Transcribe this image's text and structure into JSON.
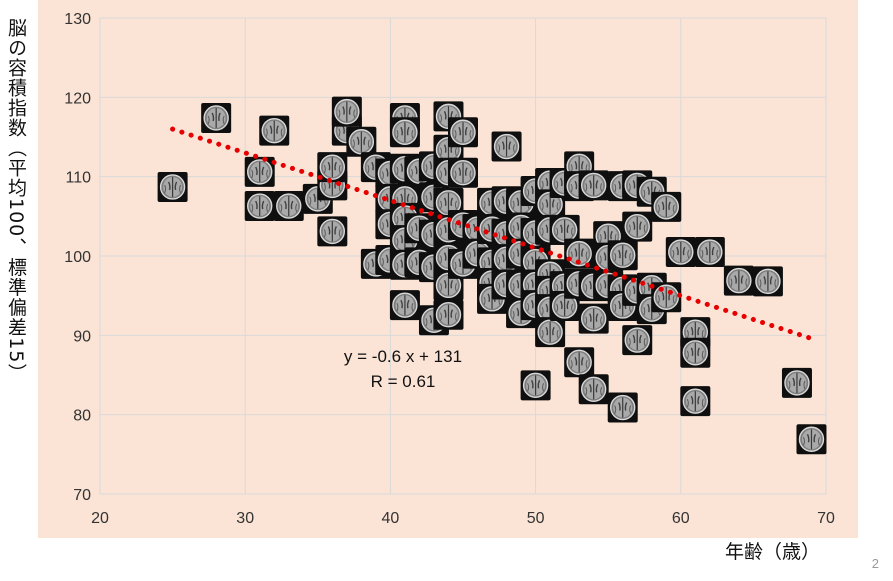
{
  "chart_data": {
    "type": "scatter",
    "title": "",
    "xlabel": "年齢（歳）",
    "ylabel": "脳の容積指数（平均100、標準偏差15）",
    "xlim": [
      20,
      70
    ],
    "ylim": [
      70,
      130
    ],
    "xticks": [
      "20",
      "30",
      "40",
      "50",
      "60",
      "70"
    ],
    "yticks": [
      "70",
      "80",
      "90",
      "100",
      "110",
      "120",
      "130"
    ],
    "grid": true,
    "marker": "brain-mri-icon",
    "series": [
      {
        "points": [
          [
            25,
            108.7
          ],
          [
            28,
            117.4
          ],
          [
            31,
            110.6
          ],
          [
            31,
            106.3
          ],
          [
            32,
            115.8
          ],
          [
            33,
            106.3
          ],
          [
            35,
            107.2
          ],
          [
            36,
            108.9
          ],
          [
            36,
            111.2
          ],
          [
            36,
            103.1
          ],
          [
            37,
            115.8
          ],
          [
            37,
            118.2
          ],
          [
            38,
            114.4
          ],
          [
            39,
            111.2
          ],
          [
            39,
            99
          ],
          [
            40,
            110.4
          ],
          [
            40,
            107.2
          ],
          [
            40,
            104
          ],
          [
            40,
            99.5
          ],
          [
            41,
            117.4
          ],
          [
            41,
            115.6
          ],
          [
            41,
            111
          ],
          [
            41,
            107.2
          ],
          [
            41,
            104.8
          ],
          [
            41,
            102
          ],
          [
            41,
            98.9
          ],
          [
            41,
            93.8
          ],
          [
            42,
            110.7
          ],
          [
            42,
            103.5
          ],
          [
            42,
            99.2
          ],
          [
            43,
            111.3
          ],
          [
            43,
            107.4
          ],
          [
            43,
            102.7
          ],
          [
            43,
            98.6
          ],
          [
            43,
            91.9
          ],
          [
            44,
            117.6
          ],
          [
            44,
            113.4
          ],
          [
            44,
            110.5
          ],
          [
            44,
            106.7
          ],
          [
            44,
            103.3
          ],
          [
            44,
            99.8
          ],
          [
            44,
            96.3
          ],
          [
            44,
            92.6
          ],
          [
            45,
            115.6
          ],
          [
            45,
            110.5
          ],
          [
            45,
            103.9
          ],
          [
            45,
            99
          ],
          [
            46,
            103.4
          ],
          [
            46,
            100.3
          ],
          [
            47,
            106.7
          ],
          [
            47,
            103.4
          ],
          [
            47,
            99.2
          ],
          [
            47,
            96.6
          ],
          [
            47,
            94.6
          ],
          [
            48,
            113.8
          ],
          [
            48,
            106.9
          ],
          [
            48,
            102.8
          ],
          [
            48,
            99.6
          ],
          [
            48,
            96.4
          ],
          [
            49,
            106.7
          ],
          [
            49,
            103.6
          ],
          [
            49,
            100.3
          ],
          [
            49,
            96.3
          ],
          [
            49,
            92.8
          ],
          [
            50,
            108.2
          ],
          [
            50,
            102.9
          ],
          [
            50,
            99.3
          ],
          [
            50,
            96.4
          ],
          [
            50,
            93.8
          ],
          [
            50,
            83.7
          ],
          [
            51,
            109.2
          ],
          [
            51,
            106.5
          ],
          [
            51,
            103.3
          ],
          [
            51,
            97.7
          ],
          [
            51,
            95.6
          ],
          [
            51,
            93.3
          ],
          [
            51,
            90.4
          ],
          [
            52,
            109.2
          ],
          [
            52,
            103.3
          ],
          [
            52,
            96.2
          ],
          [
            52,
            93.7
          ],
          [
            53,
            111.3
          ],
          [
            53,
            108.8
          ],
          [
            53,
            100.3
          ],
          [
            53,
            96.5
          ],
          [
            53,
            86.6
          ],
          [
            54,
            108.9
          ],
          [
            54,
            96.2
          ],
          [
            54,
            92.1
          ],
          [
            54,
            83.2
          ],
          [
            55,
            102.5
          ],
          [
            55,
            99.8
          ],
          [
            55,
            96.3
          ],
          [
            56,
            108.8
          ],
          [
            56,
            100.1
          ],
          [
            56,
            95.8
          ],
          [
            56,
            93.7
          ],
          [
            56,
            80.9
          ],
          [
            57,
            108.9
          ],
          [
            57,
            103.7
          ],
          [
            57,
            95.6
          ],
          [
            57,
            89.4
          ],
          [
            58,
            108.1
          ],
          [
            58,
            96
          ],
          [
            58,
            93.3
          ],
          [
            59,
            106.2
          ],
          [
            59,
            94.8
          ],
          [
            60,
            100.5
          ],
          [
            61,
            90.4
          ],
          [
            61,
            87.8
          ],
          [
            61,
            81.7
          ],
          [
            62,
            100.5
          ],
          [
            64,
            96.9
          ],
          [
            66,
            96.8
          ],
          [
            68,
            84
          ],
          [
            69,
            76.9
          ]
        ]
      }
    ],
    "trendline": {
      "slope": -0.6,
      "intercept": 131,
      "x_start": 25,
      "x_end": 69,
      "color": "#e60000",
      "style": "dotted"
    },
    "annotations": [
      "y = -0.6 x + 131",
      "R = 0.61"
    ],
    "background_color": "#fbe4d6",
    "grid_color": "#d9d9d9"
  },
  "page": {
    "number": "2"
  }
}
